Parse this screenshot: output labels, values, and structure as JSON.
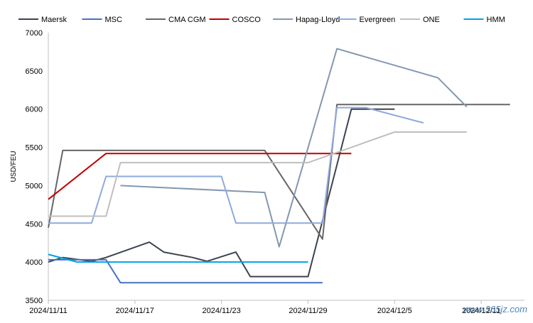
{
  "chart_data": {
    "type": "line",
    "title": "",
    "xlabel": "",
    "ylabel": "USD/FEU",
    "x_range": [
      "2024-11-11",
      "2024-12-14"
    ],
    "x_ticks": [
      "2024/11/11",
      "2024/11/17",
      "2024/11/23",
      "2024/11/29",
      "2024/12/5",
      "2024/12/11"
    ],
    "ylim": [
      3500,
      7000
    ],
    "y_ticks": [
      3500,
      4000,
      4500,
      5000,
      5500,
      6000,
      6500,
      7000
    ],
    "grid": false,
    "legend_position": "top",
    "watermark": "www.365jz.com",
    "series": [
      {
        "name": "Maersk",
        "color": "#3b4350",
        "points": [
          [
            "2024-11-11",
            4000
          ],
          [
            "2024-11-12",
            4060
          ],
          [
            "2024-11-14",
            4010
          ],
          [
            "2024-11-15",
            4060
          ],
          [
            "2024-11-18",
            4260
          ],
          [
            "2024-11-19",
            4130
          ],
          [
            "2024-11-21",
            4060
          ],
          [
            "2024-11-22",
            4010
          ],
          [
            "2024-11-24",
            4130
          ],
          [
            "2024-11-25",
            3810
          ],
          [
            "2024-11-29",
            3810
          ],
          [
            "2024-12-02",
            6000
          ],
          [
            "2024-12-05",
            6000
          ]
        ]
      },
      {
        "name": "MSC",
        "color": "#4472c4",
        "points": [
          [
            "2024-11-11",
            4030
          ],
          [
            "2024-11-15",
            4030
          ],
          [
            "2024-11-16",
            3730
          ],
          [
            "2024-11-30",
            3730
          ]
        ]
      },
      {
        "name": "CMA CGM",
        "color": "#666666",
        "points": [
          [
            "2024-11-11",
            4450
          ],
          [
            "2024-11-12",
            5460
          ],
          [
            "2024-11-26",
            5460
          ],
          [
            "2024-11-30",
            4300
          ],
          [
            "2024-12-01",
            6060
          ],
          [
            "2024-12-13",
            6060
          ]
        ]
      },
      {
        "name": "COSCO",
        "color": "#c00000",
        "points": [
          [
            "2024-11-11",
            4820
          ],
          [
            "2024-11-15",
            5420
          ],
          [
            "2024-12-02",
            5420
          ]
        ]
      },
      {
        "name": "Hapag-Lloyd",
        "color": "#8497b0",
        "points": [
          [
            "2024-11-16",
            5000
          ],
          [
            "2024-11-26",
            4910
          ],
          [
            "2024-11-27",
            4200
          ],
          [
            "2024-12-01",
            6790
          ],
          [
            "2024-12-08",
            6410
          ],
          [
            "2024-12-10",
            6030
          ]
        ]
      },
      {
        "name": "Evergreen",
        "color": "#8faadc",
        "points": [
          [
            "2024-11-11",
            4510
          ],
          [
            "2024-11-14",
            4510
          ],
          [
            "2024-11-15",
            5120
          ],
          [
            "2024-11-23",
            5120
          ],
          [
            "2024-11-24",
            4510
          ],
          [
            "2024-11-30",
            4510
          ],
          [
            "2024-12-01",
            6020
          ],
          [
            "2024-12-03",
            6020
          ],
          [
            "2024-12-07",
            5820
          ]
        ]
      },
      {
        "name": "ONE",
        "color": "#bfbfbf",
        "points": [
          [
            "2024-11-11",
            4600
          ],
          [
            "2024-11-15",
            4600
          ],
          [
            "2024-11-16",
            5300
          ],
          [
            "2024-11-29",
            5300
          ],
          [
            "2024-12-05",
            5700
          ],
          [
            "2024-12-10",
            5700
          ]
        ]
      },
      {
        "name": "HMM",
        "color": "#00a2e8",
        "points": [
          [
            "2024-11-11",
            4100
          ],
          [
            "2024-11-13",
            4000
          ],
          [
            "2024-11-29",
            4000
          ]
        ]
      }
    ]
  }
}
